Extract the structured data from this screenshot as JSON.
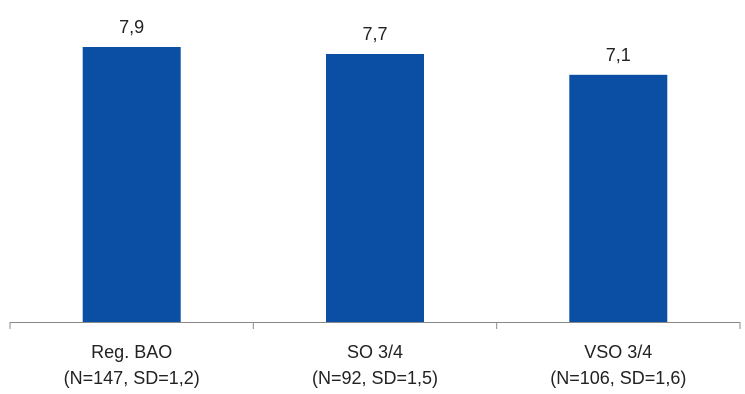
{
  "chart_data": {
    "type": "bar",
    "categories": [
      [
        "Reg. BAO",
        "(N=147, SD=1,2)"
      ],
      [
        "SO 3/4",
        "(N=92, SD=1,5)"
      ],
      [
        "VSO 3/4",
        "(N=106, SD=1,6)"
      ]
    ],
    "values": [
      7.9,
      7.7,
      7.1
    ],
    "value_labels": [
      "7,9",
      "7,7",
      "7,1"
    ],
    "ylim": [
      0,
      10
    ],
    "grid": false,
    "legend": "none",
    "colors": {
      "bar": "#0a4fa3",
      "axis": "#888888",
      "text": "#222222"
    }
  }
}
